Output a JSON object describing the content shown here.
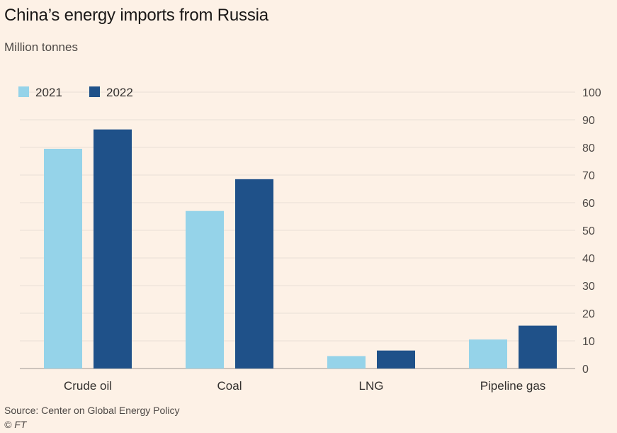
{
  "header": {
    "title": "China’s energy imports from Russia",
    "subtitle": "Million tonnes"
  },
  "footer": {
    "source": "Source: Center on Global Energy Policy",
    "credit": "© FT"
  },
  "colors": {
    "background": "#fdf1e6",
    "series_2021": "#95d3e9",
    "series_2022": "#1f5189",
    "gridline": "#e9ded5",
    "axis": "#bdb5ae"
  },
  "chart_data": {
    "type": "bar",
    "title": "China’s energy imports from Russia",
    "subtitle": "Million tonnes",
    "xlabel": "",
    "ylabel": "Million tonnes",
    "categories": [
      "Crude oil",
      "Coal",
      "LNG",
      "Pipeline gas"
    ],
    "series": [
      {
        "name": "2021",
        "values": [
          79.5,
          57,
          4.5,
          10.5
        ]
      },
      {
        "name": "2022",
        "values": [
          86.5,
          68.5,
          6.5,
          15.5
        ]
      }
    ],
    "ylim": [
      0,
      100
    ],
    "yticks": [
      0,
      10,
      20,
      30,
      40,
      50,
      60,
      70,
      80,
      90,
      100
    ],
    "grid": true,
    "yaxis_side": "right",
    "legend_position": "top-left"
  }
}
